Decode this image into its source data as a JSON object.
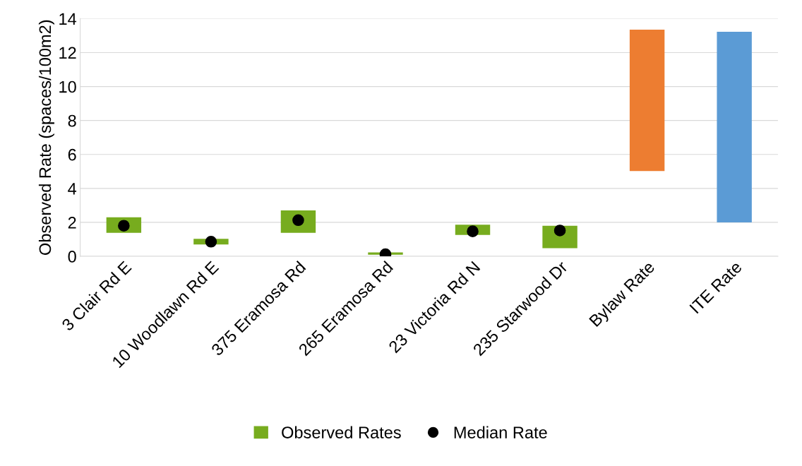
{
  "chart_data": {
    "type": "bar",
    "ylabel": "Observed Rate (spaces/100m2)",
    "categories": [
      "3 Clair Rd E",
      "10 Woodlawn Rd E",
      "375 Eramosa Rd",
      "265 Eramosa Rd",
      "23 Victoria Rd N",
      "235 Starwood Dr",
      "Bylaw Rate",
      "ITE Rate"
    ],
    "ylim": [
      0,
      14
    ],
    "yticks": [
      0,
      2,
      4,
      6,
      8,
      10,
      12,
      14
    ],
    "grid": "y",
    "legend": "bottom",
    "series": [
      {
        "name": "Observed Rates",
        "color": "#77ac1e",
        "colors": [
          "#77ac1e",
          "#77ac1e",
          "#77ac1e",
          "#77ac1e",
          "#77ac1e",
          "#77ac1e",
          "#ed7d31",
          "#5b9bd5"
        ],
        "base": [
          1.38,
          0.7,
          1.38,
          0.09,
          1.26,
          0.48,
          5.02,
          2.0
        ],
        "values": [
          0.92,
          0.33,
          1.32,
          0.14,
          0.6,
          1.32,
          8.33,
          11.23
        ]
      },
      {
        "name": "Median Rate",
        "type": "scatter",
        "color": "#000000",
        "marker": "circle",
        "x": [
          "3 Clair Rd E",
          "10 Woodlawn Rd E",
          "375 Eramosa Rd",
          "265 Eramosa Rd",
          "23 Victoria Rd N",
          "235 Starwood Dr"
        ],
        "values": [
          1.8,
          0.86,
          2.13,
          0.12,
          1.47,
          1.52
        ]
      }
    ]
  }
}
